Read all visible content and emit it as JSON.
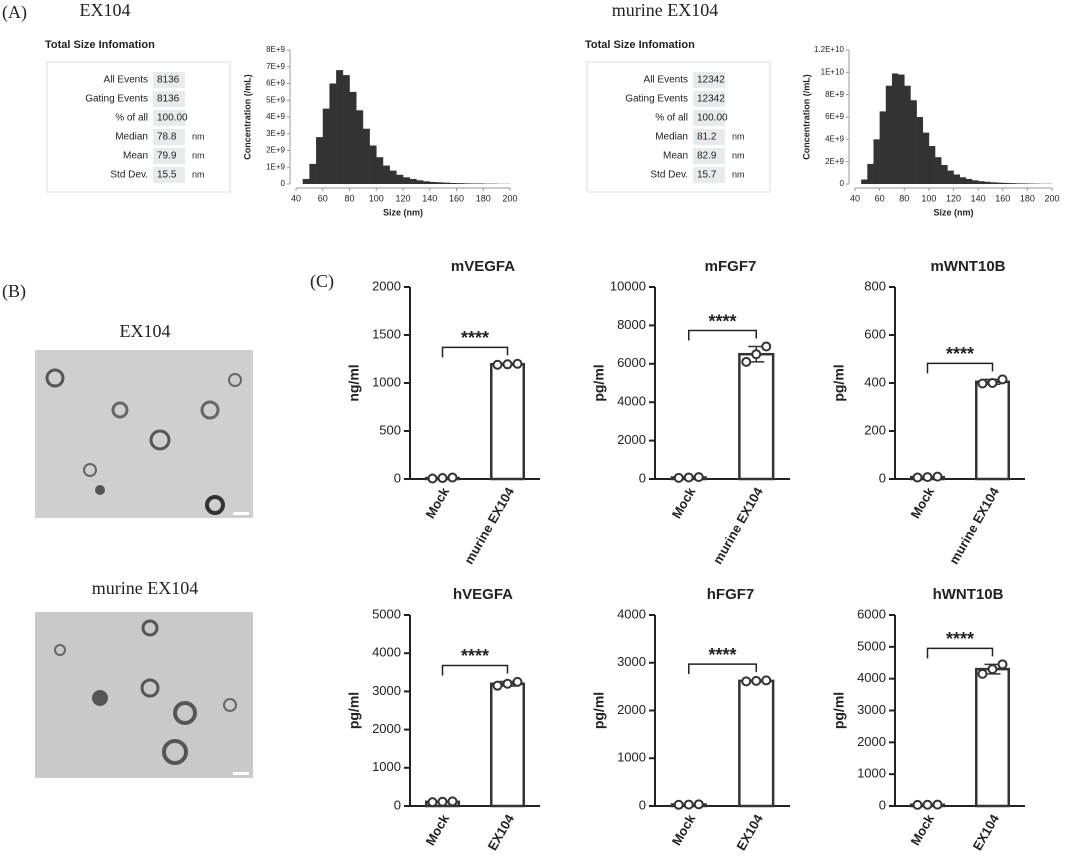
{
  "panels": {
    "a": "(A)",
    "b": "(B)",
    "c": "(C)"
  },
  "size_info": [
    {
      "sample": "EX104",
      "heading": "Total Size Infomation",
      "rows": [
        {
          "label": "All  Events",
          "value": "8136"
        },
        {
          "label": "Gating Events",
          "value": "8136"
        },
        {
          "label": "% of all",
          "value": "100.00"
        },
        {
          "label": "Median",
          "value": "78.8",
          "unit": "nm"
        },
        {
          "label": "Mean",
          "value": "79.9",
          "unit": "nm"
        },
        {
          "label": "Std Dev.",
          "value": "15.5",
          "unit": "nm"
        }
      ]
    },
    {
      "sample": "murine EX104",
      "heading": "Total Size Infomation",
      "rows": [
        {
          "label": "All  Events",
          "value": "12342"
        },
        {
          "label": "Gating Events",
          "value": "12342"
        },
        {
          "label": "% of all",
          "value": "100.00"
        },
        {
          "label": "Median",
          "value": "81.2",
          "unit": "nm"
        },
        {
          "label": "Mean",
          "value": "82.9",
          "unit": "nm"
        },
        {
          "label": "Std Dev.",
          "value": "15.7",
          "unit": "nm"
        }
      ]
    }
  ],
  "tem_labels": [
    "EX104",
    "murine EX104"
  ],
  "chart_data": [
    {
      "type": "histogram",
      "xlabel": "Size (nm)",
      "ylabel": "Concentration (/mL)",
      "color": "#333333",
      "bins": [
        40,
        45,
        50,
        55,
        60,
        65,
        70,
        75,
        80,
        85,
        90,
        95,
        100,
        105,
        110,
        115,
        120,
        125,
        130,
        135,
        140,
        145,
        150,
        155,
        160,
        165,
        170,
        175,
        180,
        185,
        190,
        195,
        200
      ],
      "values": [
        0,
        300000000,
        1200000000,
        2800000000,
        4500000000,
        6000000000,
        6800000000,
        6500000000,
        5500000000,
        4400000000,
        3300000000,
        2300000000,
        1600000000,
        1100000000,
        800000000,
        550000000,
        400000000,
        300000000,
        220000000,
        160000000,
        120000000,
        100000000,
        80000000,
        60000000,
        50000000,
        40000000,
        30000000,
        30000000,
        20000000,
        20000000,
        10000000,
        10000000
      ],
      "xlim": [
        40,
        200
      ],
      "xticks": [
        40,
        60,
        80,
        100,
        120,
        140,
        160,
        180,
        200
      ],
      "ylim": [
        0,
        8000000000
      ],
      "yticks": [
        0,
        {
          "value": 1000000000,
          "label": "1E+9"
        },
        {
          "value": 2000000000,
          "label": "2E+9"
        },
        {
          "value": 3000000000,
          "label": "3E+9"
        },
        {
          "value": 4000000000,
          "label": "4E+9"
        },
        {
          "value": 5000000000,
          "label": "5E+9"
        },
        {
          "value": 6000000000,
          "label": "6E+9"
        },
        {
          "value": 7000000000,
          "label": "7E+9"
        },
        {
          "value": 8000000000,
          "label": "8E+9"
        }
      ]
    },
    {
      "type": "histogram",
      "xlabel": "Size (nm)",
      "ylabel": "Concentration (/mL)",
      "color": "#333333",
      "bins": [
        40,
        45,
        50,
        55,
        60,
        65,
        70,
        75,
        80,
        85,
        90,
        95,
        100,
        105,
        110,
        115,
        120,
        125,
        130,
        135,
        140,
        145,
        150,
        155,
        160,
        165,
        170,
        175,
        180,
        185,
        190,
        195,
        200
      ],
      "values": [
        0,
        400000000,
        1800000000,
        4000000000,
        6500000000,
        8800000000,
        9900000000,
        9800000000,
        8800000000,
        7500000000,
        6000000000,
        4600000000,
        3400000000,
        2400000000,
        1700000000,
        1200000000,
        850000000,
        600000000,
        450000000,
        330000000,
        250000000,
        200000000,
        150000000,
        120000000,
        100000000,
        80000000,
        60000000,
        50000000,
        40000000,
        30000000,
        20000000,
        20000000
      ],
      "xlim": [
        40,
        200
      ],
      "xticks": [
        40,
        60,
        80,
        100,
        120,
        140,
        160,
        180,
        200
      ],
      "ylim": [
        0,
        12000000000
      ],
      "yticks": [
        0,
        {
          "value": 2000000000,
          "label": "2E+9"
        },
        {
          "value": 4000000000,
          "label": "4E+9"
        },
        {
          "value": 6000000000,
          "label": "6E+9"
        },
        {
          "value": 8000000000,
          "label": "8E+9"
        },
        {
          "value": 10000000000,
          "label": "1E+10"
        },
        {
          "value": 12000000000,
          "label": "1.2E+10"
        }
      ]
    },
    {
      "type": "bar",
      "title": "mVEGFA",
      "ylabel": "ng/ml",
      "categories": [
        "Mock",
        "murine EX104"
      ],
      "values": [
        10,
        1195
      ],
      "errors": [
        5,
        10
      ],
      "points": [
        [
          5,
          10,
          15
        ],
        [
          1190,
          1195,
          1200
        ]
      ],
      "significance": "****",
      "ylim": [
        0,
        2000
      ],
      "yticks": [
        0,
        500,
        1000,
        1500,
        2000
      ]
    },
    {
      "type": "bar",
      "title": "mFGF7",
      "ylabel": "pg/ml",
      "categories": [
        "Mock",
        "murine EX104"
      ],
      "values": [
        80,
        6500
      ],
      "errors": [
        20,
        400
      ],
      "points": [
        [
          60,
          80,
          100
        ],
        [
          6100,
          6500,
          6900
        ]
      ],
      "significance": "****",
      "ylim": [
        0,
        10000
      ],
      "yticks": [
        0,
        2000,
        4000,
        6000,
        8000,
        10000
      ]
    },
    {
      "type": "bar",
      "title": "mWNT10B",
      "ylabel": "pg/ml",
      "categories": [
        "Mock",
        "murine EX104"
      ],
      "values": [
        8,
        405
      ],
      "errors": [
        2,
        10
      ],
      "points": [
        [
          6,
          8,
          10
        ],
        [
          398,
          400,
          415
        ]
      ],
      "significance": "****",
      "ylim": [
        0,
        800
      ],
      "yticks": [
        0,
        200,
        400,
        600,
        800
      ]
    },
    {
      "type": "bar",
      "title": "hVEGFA",
      "ylabel": "pg/ml",
      "categories": [
        "Mock",
        "EX104"
      ],
      "values": [
        110,
        3200
      ],
      "errors": [
        15,
        60
      ],
      "points": [
        [
          100,
          110,
          120
        ],
        [
          3150,
          3200,
          3250
        ]
      ],
      "significance": "****",
      "ylim": [
        0,
        5000
      ],
      "yticks": [
        0,
        1000,
        2000,
        3000,
        4000,
        5000
      ]
    },
    {
      "type": "bar",
      "title": "hFGF7",
      "ylabel": "pg/ml",
      "categories": [
        "Mock",
        "EX104"
      ],
      "values": [
        30,
        2620
      ],
      "errors": [
        5,
        15
      ],
      "points": [
        [
          25,
          30,
          35
        ],
        [
          2610,
          2620,
          2630
        ]
      ],
      "significance": "****",
      "ylim": [
        0,
        4000
      ],
      "yticks": [
        0,
        1000,
        2000,
        3000,
        4000
      ]
    },
    {
      "type": "bar",
      "title": "hWNT10B",
      "ylabel": "pg/ml",
      "categories": [
        "Mock",
        "EX104"
      ],
      "values": [
        40,
        4300
      ],
      "errors": [
        5,
        150
      ],
      "points": [
        [
          35,
          40,
          45
        ],
        [
          4150,
          4300,
          4450
        ]
      ],
      "significance": "****",
      "ylim": [
        0,
        6000
      ],
      "yticks": [
        0,
        1000,
        2000,
        3000,
        4000,
        5000,
        6000
      ]
    }
  ]
}
